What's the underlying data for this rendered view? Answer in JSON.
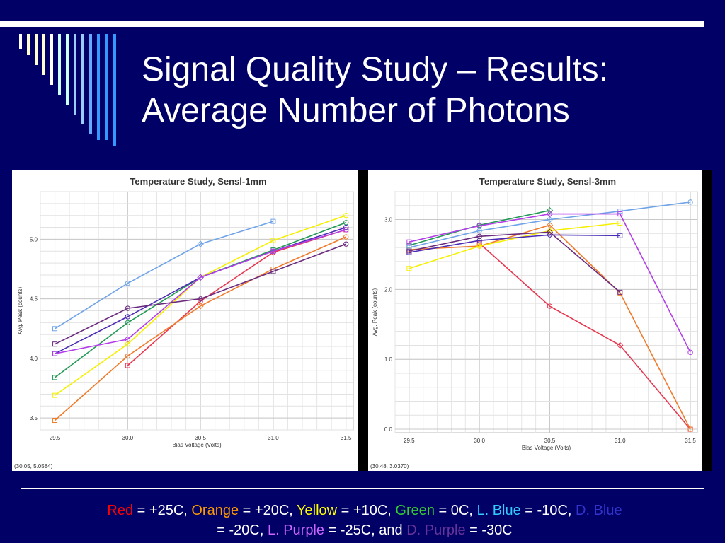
{
  "slide": {
    "title_line1": "Signal Quality Study – Results:",
    "title_line2": "Average Number of Photons"
  },
  "colors": {
    "background": "#000066",
    "stripes": [
      "#ffffcc",
      "#ccffff",
      "#99ccff",
      "#3399ff"
    ],
    "series": {
      "red": "#e8364f",
      "orange": "#f07a2a",
      "yellow": "#f6f000",
      "green": "#229955",
      "light_blue": "#6ea3e8",
      "dark_blue": "#4b2bb5",
      "light_purple": "#b33ee8",
      "dark_purple": "#6a2a7e"
    }
  },
  "legend": {
    "red_label": "Red",
    "red_value": " = +25C, ",
    "orange_label": "Orange",
    "orange_value": " = +20C, ",
    "yellow_label": "Yellow",
    "yellow_value": " = +10C, ",
    "green_label": "Green",
    "green_value": " = 0C, ",
    "lblue_label": "L. Blue",
    "lblue_value": " = -10C, ",
    "dblue_label": "D. Blue",
    "dblue_value": " = -20C, ",
    "lpurple_label": "L. Purple",
    "lpurple_value": " = -25C, and ",
    "dpurple_label": "D. Purple",
    "dpurple_value": " = -30C",
    "colors": {
      "red": "#ff0000",
      "orange": "#ff9900",
      "yellow": "#ffff00",
      "green": "#33cc33",
      "lblue": "#33ccff",
      "dblue": "#3333cc",
      "lpurple": "#cc66ff",
      "dpurple": "#663399"
    }
  },
  "chart_data": [
    {
      "type": "line",
      "title": "Temperature Study, Sensl-1mm",
      "xlabel": "Bias Voltage (Volts)",
      "ylabel": "Avg. Peak (counts)",
      "xlim": [
        29.4,
        31.55
      ],
      "ylim": [
        3.4,
        5.4
      ],
      "xticks": [
        "29.5",
        "30.0",
        "30.5",
        "31.0",
        "31.5"
      ],
      "yticks": [
        "3.5",
        "4.0",
        "4.5",
        "5.0"
      ],
      "grid": true,
      "readout": "(30.05, 5.0584)",
      "series": [
        {
          "key": "red",
          "x": [
            30.0,
            30.5,
            31.0,
            31.5
          ],
          "y": [
            3.94,
            4.48,
            4.89,
            5.08
          ]
        },
        {
          "key": "orange",
          "x": [
            29.5,
            30.0,
            30.5,
            31.0,
            31.5
          ],
          "y": [
            3.48,
            4.02,
            4.44,
            4.75,
            5.02
          ]
        },
        {
          "key": "yellow",
          "x": [
            29.5,
            30.0,
            30.5,
            31.0,
            31.5
          ],
          "y": [
            3.69,
            4.12,
            4.68,
            4.99,
            5.2
          ]
        },
        {
          "key": "green",
          "x": [
            29.5,
            30.0,
            30.5,
            31.0,
            31.5
          ],
          "y": [
            3.84,
            4.3,
            4.68,
            4.91,
            5.14
          ]
        },
        {
          "key": "light_blue",
          "x": [
            29.5,
            30.0,
            30.5,
            31.0
          ],
          "y": [
            4.25,
            4.63,
            4.96,
            5.15
          ]
        },
        {
          "key": "dark_blue",
          "x": [
            29.5,
            30.0,
            30.5,
            31.0,
            31.5
          ],
          "y": [
            4.04,
            4.35,
            4.68,
            4.9,
            5.1
          ]
        },
        {
          "key": "light_purple",
          "x": [
            29.5,
            30.0,
            30.5,
            31.0,
            31.5
          ],
          "y": [
            4.04,
            4.16,
            4.68,
            4.9,
            5.08
          ]
        },
        {
          "key": "dark_purple",
          "x": [
            29.5,
            30.0,
            30.5,
            31.0,
            31.5
          ],
          "y": [
            4.12,
            4.42,
            4.5,
            4.73,
            4.96
          ]
        }
      ]
    },
    {
      "type": "line",
      "title": "Temperature Study, Sensl-3mm",
      "xlabel": "Bias Voltage (Volts)",
      "ylabel": "Avg. Peak (counts)",
      "xlim": [
        29.4,
        31.55
      ],
      "ylim": [
        -0.05,
        3.4
      ],
      "xticks": [
        "29.5",
        "30.0",
        "30.5",
        "31.0",
        "31.5"
      ],
      "yticks": [
        "0.0",
        "1.0",
        "2.0",
        "3.0"
      ],
      "grid": true,
      "readout": "(30.48, 3.0370)",
      "series": [
        {
          "key": "red",
          "x": [
            30.0,
            30.5,
            31.0,
            31.5
          ],
          "y": [
            2.66,
            1.76,
            1.2,
            0.0
          ]
        },
        {
          "key": "orange",
          "x": [
            29.5,
            30.0,
            30.5,
            31.0,
            31.5
          ],
          "y": [
            2.57,
            2.62,
            2.92,
            1.95,
            0.0
          ]
        },
        {
          "key": "yellow",
          "x": [
            29.5,
            30.0,
            30.5,
            31.0
          ],
          "y": [
            2.3,
            2.62,
            2.84,
            2.95
          ]
        },
        {
          "key": "green",
          "x": [
            29.5,
            30.0,
            30.5
          ],
          "y": [
            2.63,
            2.92,
            3.13
          ]
        },
        {
          "key": "light_blue",
          "x": [
            29.5,
            30.0,
            30.5,
            31.0,
            31.5
          ],
          "y": [
            2.6,
            2.84,
            3.0,
            3.12,
            3.25
          ]
        },
        {
          "key": "dark_blue",
          "x": [
            29.5,
            30.0,
            30.5,
            31.0
          ],
          "y": [
            2.53,
            2.7,
            2.78,
            2.77
          ]
        },
        {
          "key": "light_purple",
          "x": [
            29.5,
            30.0,
            30.5,
            31.0,
            31.5
          ],
          "y": [
            2.68,
            2.91,
            3.08,
            3.08,
            1.1
          ]
        },
        {
          "key": "dark_purple",
          "x": [
            29.5,
            30.0,
            30.5,
            31.0
          ],
          "y": [
            2.55,
            2.76,
            2.82,
            1.96
          ]
        }
      ]
    }
  ]
}
